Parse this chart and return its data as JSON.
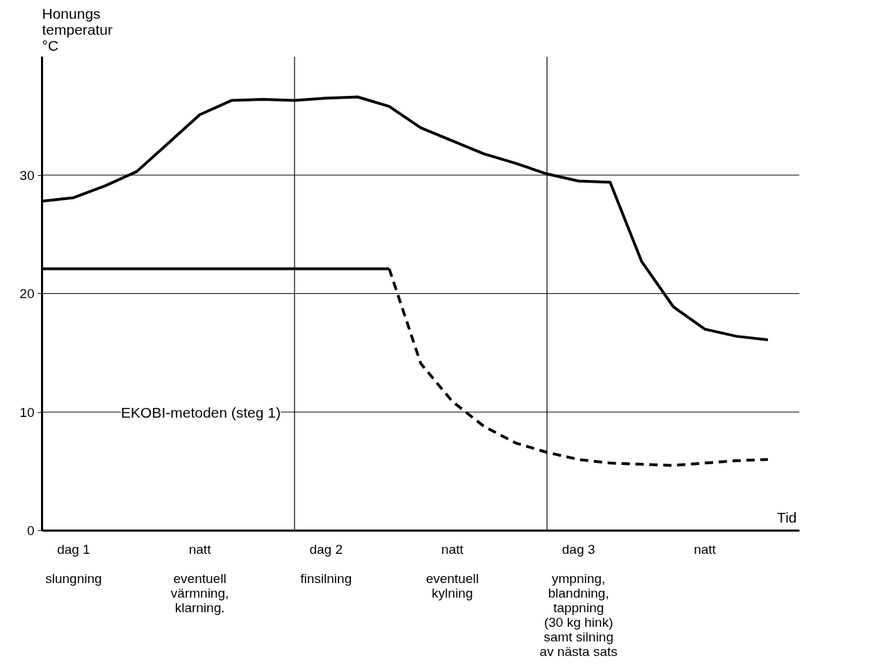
{
  "chart_data": {
    "type": "line",
    "ylabel": "Honungs\ntemperatur\n°C",
    "xlabel": "Tid",
    "categories": [
      null,
      "dag 1\n\nslungning",
      null,
      null,
      null,
      "natt\n\neventuell\nvärmning,\nklarning.",
      null,
      null,
      null,
      "dag 2\n\nfinsilning",
      null,
      null,
      null,
      "natt\n\neventuell\nkylning",
      null,
      null,
      null,
      "dag 3\n\nympning,\nblandning,\ntappning\n(30 kg hink)\nsamt silning\nav nästa sats",
      null,
      null,
      null,
      "natt",
      null,
      null,
      null
    ],
    "ylim": [
      0,
      40
    ],
    "yticks": [
      0,
      10,
      20,
      30
    ],
    "grid": false,
    "marker": "none",
    "series": [
      {
        "color": "#000000",
        "line_style": "solid",
        "values": [
          27.8,
          28.1,
          29.1,
          30.3,
          32.7,
          35.1,
          36.3,
          36.4,
          36.3,
          36.5,
          36.6,
          35.8,
          34.0,
          32.9,
          31.8,
          31.0,
          30.1,
          29.5,
          29.4,
          22.7,
          18.9,
          17.0,
          16.4,
          16.1,
          null
        ]
      },
      {
        "color": "#000000",
        "line_style": "solid",
        "values": [
          22.1,
          22.1,
          22.1,
          22.1,
          22.1,
          22.1,
          22.1,
          22.1,
          22.1,
          22.1,
          22.1,
          22.1,
          null,
          null,
          null,
          null,
          null,
          null,
          null,
          null,
          null,
          null,
          null,
          null,
          null
        ]
      },
      {
        "color": "#000000",
        "line_style": "dashed",
        "values": [
          null,
          null,
          null,
          null,
          null,
          null,
          null,
          null,
          null,
          null,
          null,
          22.1,
          14.1,
          10.9,
          8.8,
          7.4,
          6.6,
          6.0,
          5.7,
          5.6,
          5.5,
          5.7,
          5.9,
          6.0,
          null
        ]
      }
    ],
    "ref_lines": [
      {
        "axis": "y",
        "value": 30,
        "color": "#000000"
      },
      {
        "axis": "y",
        "value": 20,
        "color": "#000000"
      },
      {
        "axis": "y",
        "value": 10,
        "label": "EKOBI-metoden (steg 1)",
        "color": "#000000"
      }
    ]
  }
}
